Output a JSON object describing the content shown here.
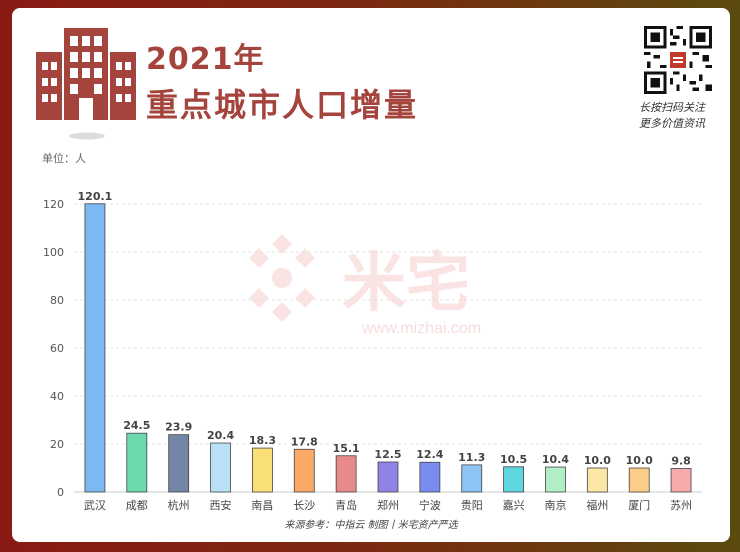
{
  "header": {
    "year_title": "2021年",
    "main_title": "重点城市人口增量",
    "qr_caption_line1": "长按扫码关注",
    "qr_caption_line2": "更多价值资讯",
    "icon": "building-icon",
    "accent_color": "#a4443c"
  },
  "watermark": {
    "brand": "米宅",
    "url": "www.mizhai.com"
  },
  "unit_label": "单位：人",
  "footer": "来源参考：中指云 制图丨米宅资产严选",
  "chart_data": {
    "type": "bar",
    "categories": [
      "武汉",
      "成都",
      "杭州",
      "西安",
      "南昌",
      "长沙",
      "青岛",
      "郑州",
      "宁波",
      "贵阳",
      "嘉兴",
      "南京",
      "福州",
      "厦门",
      "苏州"
    ],
    "values": [
      120.1,
      24.5,
      23.9,
      20.4,
      18.3,
      17.8,
      15.1,
      12.5,
      12.4,
      11.3,
      10.5,
      10.4,
      10.0,
      10.0,
      9.8
    ],
    "value_labels": [
      "120.1",
      "24.5",
      "23.9",
      "20.4",
      "18.3",
      "17.8",
      "15.1",
      "12.5",
      "12.4",
      "11.3",
      "10.5",
      "10.4",
      "10.0",
      "10.0",
      "9.8"
    ],
    "colors": [
      "#7db8f0",
      "#6fd9ae",
      "#7386a6",
      "#b9e1f6",
      "#fbe077",
      "#fba966",
      "#e98a8a",
      "#8f84e6",
      "#7a8cf0",
      "#8dc3f5",
      "#5dd6e0",
      "#b1edc6",
      "#fde7a6",
      "#fccd88",
      "#f8a9a9"
    ],
    "ylim": [
      0,
      130
    ],
    "yticks": [
      "0",
      "20",
      "40",
      "60",
      "80",
      "100",
      "120"
    ],
    "grid": true,
    "title": "重点城市人口增量",
    "ylabel": "单位：人"
  }
}
